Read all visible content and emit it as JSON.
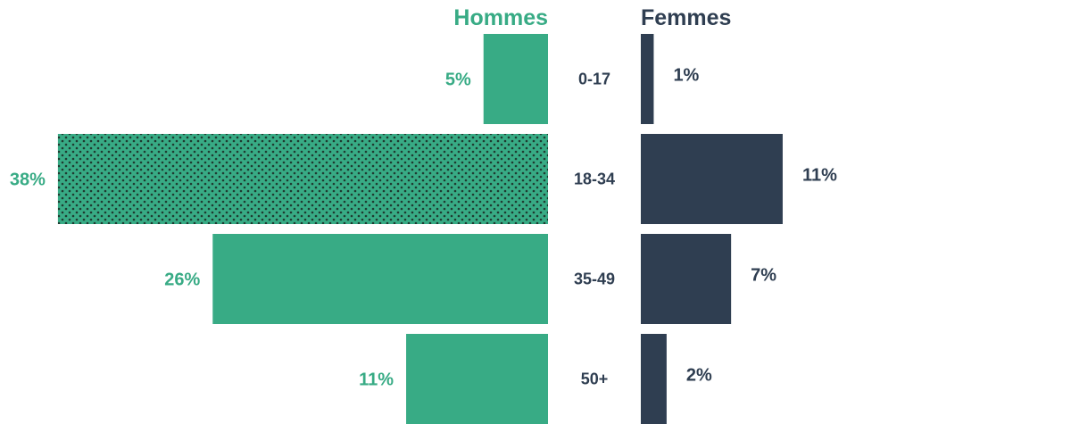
{
  "chart_data": {
    "type": "bar",
    "orientation": "horizontal-diverging",
    "categories": [
      "0-17",
      "18-34",
      "35-49",
      "50+"
    ],
    "series": [
      {
        "name": "Hommes",
        "values": [
          5,
          38,
          26,
          11
        ],
        "labels": [
          "5%",
          "38%",
          "26%",
          "11%"
        ],
        "color": "#38AB85",
        "side": "left"
      },
      {
        "name": "Femmes",
        "values": [
          1,
          11,
          7,
          2
        ],
        "labels": [
          "1%",
          "11%",
          "7%",
          "2%"
        ],
        "color": "#2F3E51",
        "side": "right"
      }
    ],
    "highlight": {
      "series": "Hommes",
      "category": "18-34",
      "pattern": "dots"
    },
    "label_color": "#2F3E51",
    "grid": false,
    "legend": "top"
  }
}
